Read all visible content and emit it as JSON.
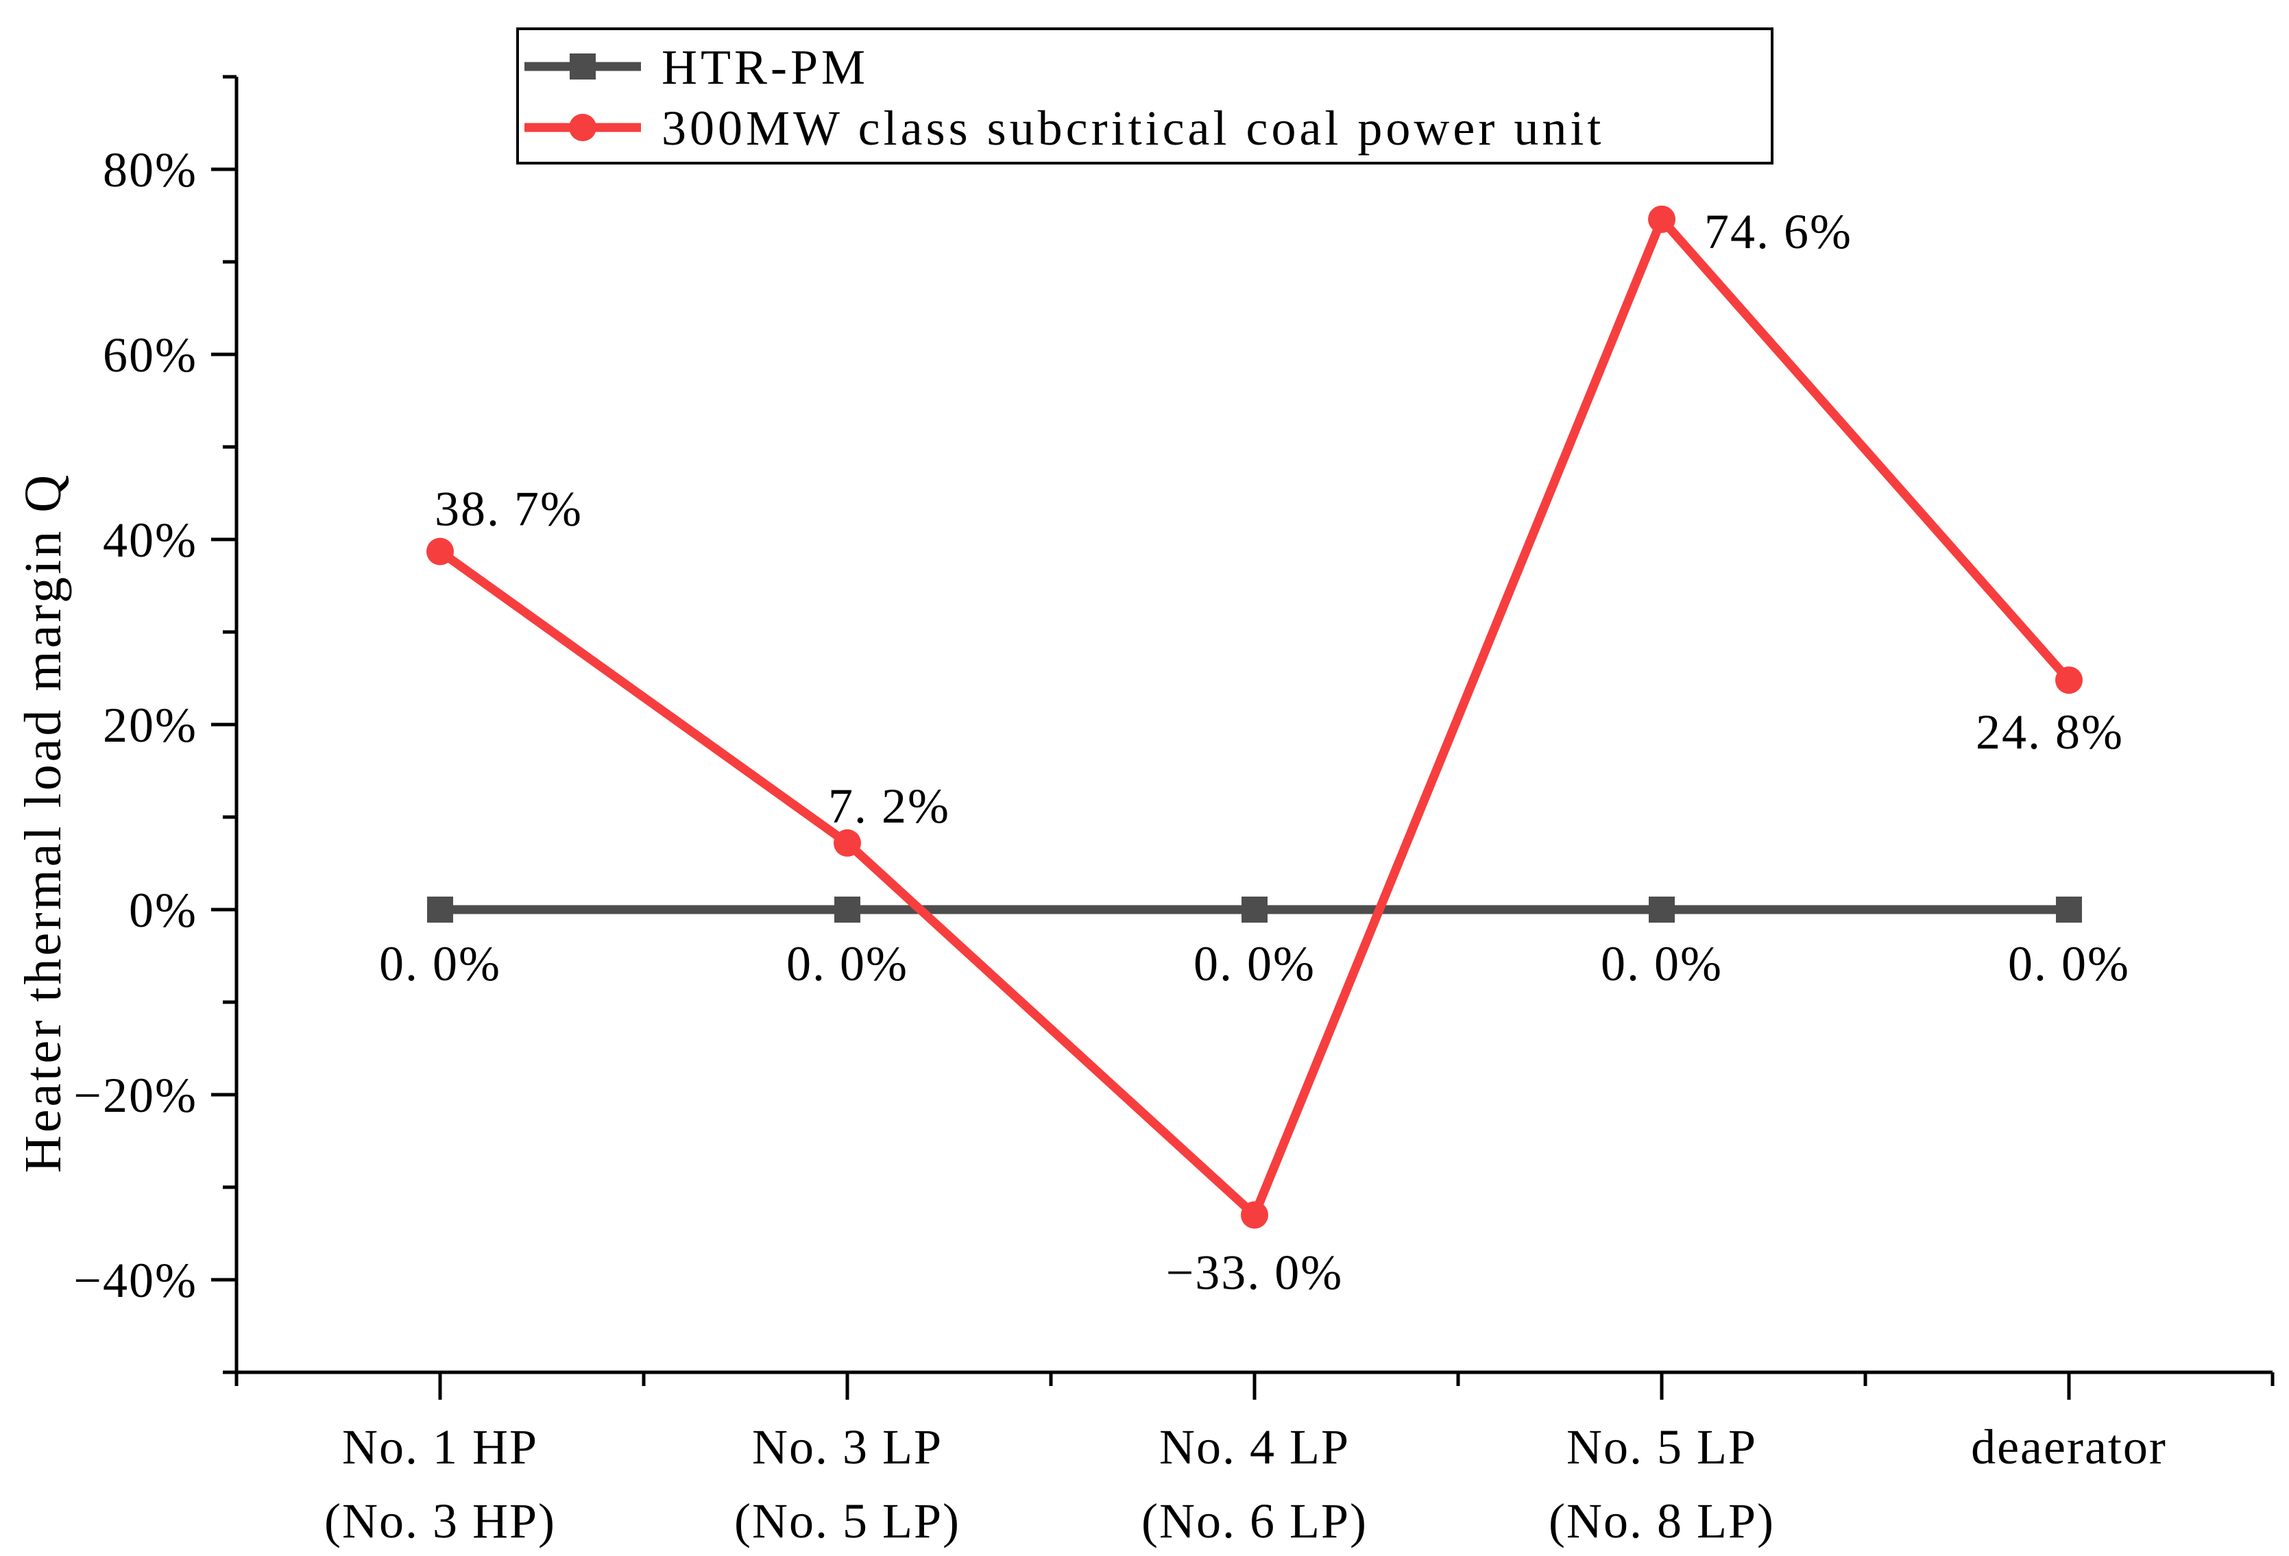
{
  "chart_data": {
    "type": "line",
    "title": "",
    "ylabel": "Heater thermal load margin Q",
    "xlabel": "",
    "ylim": [
      -50,
      90
    ],
    "grid": false,
    "legend_position": "top-left-inside",
    "background_color": "#FFFFFF",
    "axis_color": "#000000",
    "categories": [
      [
        "No. 1 HP",
        "(No. 3 HP)"
      ],
      [
        "No. 3 LP",
        "(No. 5 LP)"
      ],
      [
        "No. 4 LP",
        "(No. 6 LP)"
      ],
      [
        "No. 5 LP",
        "(No. 8 LP)"
      ],
      [
        "deaerator"
      ]
    ],
    "ytick_values": [
      80,
      60,
      40,
      20,
      0,
      -20,
      -40
    ],
    "ytick_labels": [
      "80%",
      "60%",
      "40%",
      "20%",
      "0%",
      "−20%",
      "−40%"
    ],
    "ytick_minor_values": [
      90,
      70,
      50,
      30,
      10,
      -10,
      -30,
      -50
    ],
    "series": [
      {
        "name": "HTR-PM",
        "color": "#4D4D4D",
        "marker": "square",
        "values": [
          0,
          0,
          0,
          0,
          0
        ],
        "point_labels": [
          "0. 0%",
          "0. 0%",
          "0. 0%",
          "0. 0%",
          "0. 0%"
        ],
        "label_placement": [
          {
            "anchor": "middle",
            "dx": 0,
            "dy": 103
          },
          {
            "anchor": "middle",
            "dx": 0,
            "dy": 103
          },
          {
            "anchor": "middle",
            "dx": 0,
            "dy": 103
          },
          {
            "anchor": "middle",
            "dx": 0,
            "dy": 103
          },
          {
            "anchor": "middle",
            "dx": 0,
            "dy": 103
          }
        ]
      },
      {
        "name": "300MW class subcritical coal power unit",
        "color": "#F73E3E",
        "marker": "circle",
        "values": [
          38.7,
          7.2,
          -33.0,
          74.6,
          24.8
        ],
        "point_labels": [
          "38. 7%",
          "7. 2%",
          "−33. 0%",
          "74. 6%",
          "24. 8%"
        ],
        "label_placement": [
          {
            "anchor": "start",
            "dx": -8,
            "dy": -38
          },
          {
            "anchor": "start",
            "dx": -28,
            "dy": -30
          },
          {
            "anchor": "middle",
            "dx": 0,
            "dy": 108
          },
          {
            "anchor": "start",
            "dx": 62,
            "dy": 42
          },
          {
            "anchor": "middle",
            "dx": -28,
            "dy": 100
          }
        ]
      }
    ]
  }
}
